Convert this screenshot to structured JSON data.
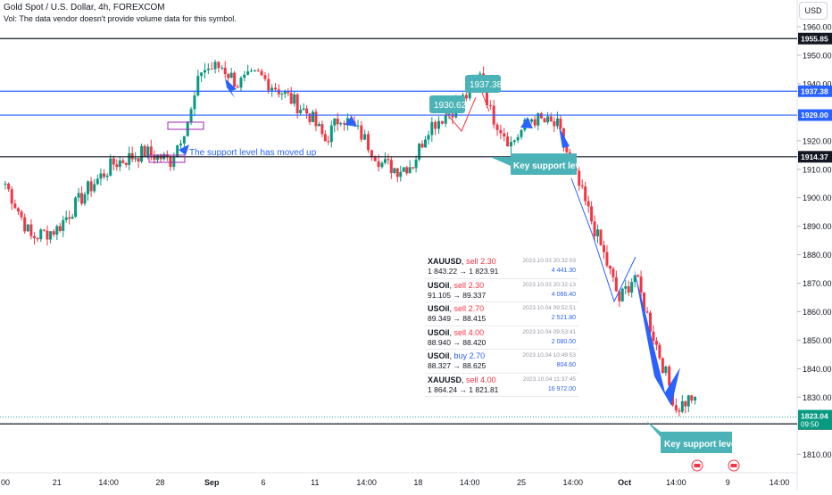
{
  "header": {
    "title": "Gold Spot / U.S. Dollar, 4h, FOREXCOM",
    "volume_note": "Vol: The data vendor doesn't provide volume data for this symbol."
  },
  "currency_button": "USD",
  "colors": {
    "up": "#089981",
    "down": "#f23645",
    "blue": "#2962ff",
    "teal": "#4bb3b7",
    "black": "#131722",
    "purple": "#9c27b0"
  },
  "chart_data": {
    "type": "candlestick",
    "ylim": [
      1805,
      1965
    ],
    "y_ticks": [
      1810,
      1820,
      1830,
      1840,
      1850,
      1860,
      1870,
      1880,
      1890,
      1900,
      1910,
      1920,
      1930,
      1940,
      1950,
      1960
    ],
    "x_ticks": [
      {
        "label": "00",
        "x": 0
      },
      {
        "label": "21",
        "x": 1
      },
      {
        "label": "14:00",
        "x": 2
      },
      {
        "label": "28",
        "x": 3
      },
      {
        "label": "Sep",
        "x": 4
      },
      {
        "label": "6",
        "x": 5
      },
      {
        "label": "11",
        "x": 6
      },
      {
        "label": "14:00",
        "x": 7
      },
      {
        "label": "18",
        "x": 8
      },
      {
        "label": "14:00",
        "x": 9
      },
      {
        "label": "25",
        "x": 10
      },
      {
        "label": "14:00",
        "x": 11
      },
      {
        "label": "Oct",
        "x": 12
      },
      {
        "label": "14:00",
        "x": 13
      },
      {
        "label": "9",
        "x": 14
      },
      {
        "label": "14:00",
        "x": 15
      }
    ],
    "horizontal_levels": [
      {
        "price": 1955.85,
        "label": "1955.85",
        "color": "#131722"
      },
      {
        "price": 1937.38,
        "label": "1937.38",
        "color": "#2962ff"
      },
      {
        "price": 1929.0,
        "label": "1929.00",
        "color": "#2962ff"
      },
      {
        "price": 1914.37,
        "label": "1914.37",
        "color": "#131722"
      },
      {
        "price": 1820.63,
        "label": "1820.63",
        "color": "#131722"
      }
    ],
    "current_price": {
      "price": 1823.04,
      "label": "1823.04",
      "countdown": "09:50"
    },
    "price_callouts": [
      "1930.62",
      "1937.38"
    ],
    "annotations": [
      "The support level has moved up",
      "Key support level",
      "Key support level"
    ],
    "series": [
      {
        "name": "XAUUSD",
        "anchors": [
          [
            0,
            1905
          ],
          [
            0.5,
            1886
          ],
          [
            1,
            1889
          ],
          [
            1.6,
            1903
          ],
          [
            2.1,
            1912
          ],
          [
            2.7,
            1916
          ],
          [
            3.2,
            1913
          ],
          [
            3.6,
            1930
          ],
          [
            3.8,
            1945
          ],
          [
            4.2,
            1946
          ],
          [
            4.5,
            1940
          ],
          [
            4.9,
            1943
          ],
          [
            5.3,
            1938
          ],
          [
            5.9,
            1929
          ],
          [
            6.2,
            1920
          ],
          [
            6.5,
            1929
          ],
          [
            6.9,
            1922
          ],
          [
            7.3,
            1912
          ],
          [
            7.6,
            1910
          ],
          [
            7.9,
            1912
          ],
          [
            8.2,
            1925
          ],
          [
            8.6,
            1930
          ],
          [
            9.0,
            1937
          ],
          [
            9.2,
            1945
          ],
          [
            9.4,
            1930
          ],
          [
            9.8,
            1919
          ],
          [
            10.2,
            1928
          ],
          [
            10.7,
            1925
          ],
          [
            11.0,
            1910
          ],
          [
            11.3,
            1895
          ],
          [
            11.6,
            1880
          ],
          [
            11.9,
            1864
          ],
          [
            12.2,
            1873
          ],
          [
            12.5,
            1855
          ],
          [
            12.8,
            1838
          ],
          [
            13.0,
            1826
          ],
          [
            13.3,
            1830
          ],
          [
            13.5,
            1823
          ]
        ]
      }
    ]
  },
  "trades": [
    {
      "symbol": "XAUUSD",
      "side": "sell",
      "lots": "2.30",
      "prices": "1 843.22 → 1 823.91",
      "time": "2023.10.03 20:32:03",
      "profit": "4 441.30"
    },
    {
      "symbol": "USOil",
      "side": "sell",
      "lots": "2.30",
      "prices": "91.105 → 89.337",
      "time": "2023.10.03 20:32:13",
      "profit": "4 066.40"
    },
    {
      "symbol": "USOil",
      "side": "sell",
      "lots": "2.70",
      "prices": "89.349 → 88.415",
      "time": "2023.10.04 09:52:51",
      "profit": "2 521.80"
    },
    {
      "symbol": "USOil",
      "side": "sell",
      "lots": "4.00",
      "prices": "88.940 → 88.420",
      "time": "2023.10.04 09:53:41",
      "profit": "2 080.00"
    },
    {
      "symbol": "USOil",
      "side": "buy",
      "lots": "2.70",
      "prices": "88.327 → 88.625",
      "time": "2023.10.04 10:49:53",
      "profit": "804.60"
    },
    {
      "symbol": "XAUUSD",
      "side": "sell",
      "lots": "4.00",
      "prices": "1 864.24 → 1 821.81",
      "time": "2023.10.04 11:37:45",
      "profit": "16 972.00"
    }
  ]
}
